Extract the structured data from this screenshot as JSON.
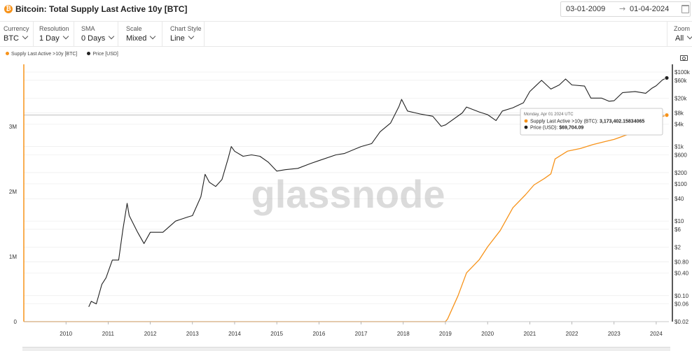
{
  "header": {
    "title": "Bitcoin: Total Supply Last Active 10y [BTC]",
    "date_start": "03-01-2009",
    "date_end": "01-04-2024",
    "arrow": "→"
  },
  "controls": [
    {
      "label": "Currency",
      "value": "BTC"
    },
    {
      "label": "Resolution",
      "value": "1 Day"
    },
    {
      "label": "SMA",
      "value": "0 Days"
    },
    {
      "label": "Scale",
      "value": "Mixed"
    },
    {
      "label": "Chart Style",
      "value": "Line"
    }
  ],
  "zoom": {
    "label": "Zoom",
    "value": "All"
  },
  "legend": [
    {
      "name": "Supply Last Active >10y [BTC]",
      "color": "#f7931a"
    },
    {
      "name": "Price [USD]",
      "color": "#222222"
    }
  ],
  "watermark": "glassnode",
  "tooltip": {
    "date": "Monday, Apr 01 2024 UTC",
    "lines": [
      {
        "label": "Supply Last Active >10y (BTC):",
        "value": "3,173,402.15834065",
        "color": "#f7931a"
      },
      {
        "label": "Price (USD):",
        "value": "$69,704.09",
        "color": "#222222"
      }
    ]
  },
  "chart_data": {
    "type": "line",
    "title": "Bitcoin: Total Supply Last Active 10y [BTC]",
    "x_ticks": [
      "2010",
      "2011",
      "2012",
      "2013",
      "2014",
      "2015",
      "2016",
      "2017",
      "2018",
      "2019",
      "2020",
      "2021",
      "2022",
      "2023",
      "2024"
    ],
    "left_axis": {
      "ticks": [
        {
          "label": "0",
          "value": 0
        },
        {
          "label": "1M",
          "value": 1000000
        },
        {
          "label": "2M",
          "value": 2000000
        },
        {
          "label": "3M",
          "value": 3000000
        }
      ],
      "ylim": [
        0,
        3900000
      ],
      "scale": "linear"
    },
    "right_axis": {
      "ticks": [
        {
          "label": "$0.02",
          "value": 0.02
        },
        {
          "label": "$0.06",
          "value": 0.06
        },
        {
          "label": "$0.10",
          "value": 0.1
        },
        {
          "label": "$0.40",
          "value": 0.4
        },
        {
          "label": "$0.80",
          "value": 0.8
        },
        {
          "label": "$2",
          "value": 2
        },
        {
          "label": "$6",
          "value": 6
        },
        {
          "label": "$10",
          "value": 10
        },
        {
          "label": "$40",
          "value": 40
        },
        {
          "label": "$100",
          "value": 100
        },
        {
          "label": "$200",
          "value": 200
        },
        {
          "label": "$600",
          "value": 600
        },
        {
          "label": "$1k",
          "value": 1000
        },
        {
          "label": "$4k",
          "value": 4000
        },
        {
          "label": "$8k",
          "value": 8000
        },
        {
          "label": "$20k",
          "value": 20000
        },
        {
          "label": "$60k",
          "value": 60000
        },
        {
          "label": "$100k",
          "value": 100000
        }
      ],
      "ylim": [
        0.02,
        130000
      ],
      "scale": "log"
    },
    "series": [
      {
        "name": "Supply Last Active >10y [BTC]",
        "axis": "left",
        "color": "#f7931a",
        "points": [
          [
            2009.0,
            0
          ],
          [
            2019.0,
            0
          ],
          [
            2019.05,
            40000
          ],
          [
            2019.3,
            400000
          ],
          [
            2019.5,
            750000
          ],
          [
            2019.8,
            950000
          ],
          [
            2020.0,
            1150000
          ],
          [
            2020.3,
            1400000
          ],
          [
            2020.6,
            1750000
          ],
          [
            2020.9,
            1950000
          ],
          [
            2021.1,
            2100000
          ],
          [
            2021.35,
            2200000
          ],
          [
            2021.5,
            2270000
          ],
          [
            2021.6,
            2500000
          ],
          [
            2021.9,
            2620000
          ],
          [
            2022.2,
            2660000
          ],
          [
            2022.5,
            2720000
          ],
          [
            2022.8,
            2770000
          ],
          [
            2023.0,
            2800000
          ],
          [
            2023.3,
            2870000
          ],
          [
            2023.5,
            3000000
          ],
          [
            2023.8,
            3060000
          ],
          [
            2024.0,
            3120000
          ],
          [
            2024.25,
            3173402
          ]
        ]
      },
      {
        "name": "Price [USD]",
        "axis": "right",
        "color": "#222222",
        "points": [
          [
            2010.54,
            0.05
          ],
          [
            2010.6,
            0.07
          ],
          [
            2010.72,
            0.06
          ],
          [
            2010.85,
            0.2
          ],
          [
            2010.95,
            0.3
          ],
          [
            2011.1,
            0.9
          ],
          [
            2011.25,
            0.9
          ],
          [
            2011.35,
            6
          ],
          [
            2011.45,
            30
          ],
          [
            2011.5,
            14
          ],
          [
            2011.7,
            5
          ],
          [
            2011.85,
            2.5
          ],
          [
            2012.0,
            5
          ],
          [
            2012.3,
            5
          ],
          [
            2012.6,
            10
          ],
          [
            2012.9,
            13
          ],
          [
            2013.0,
            14
          ],
          [
            2013.2,
            45
          ],
          [
            2013.3,
            180
          ],
          [
            2013.4,
            110
          ],
          [
            2013.55,
            85
          ],
          [
            2013.7,
            130
          ],
          [
            2013.85,
            500
          ],
          [
            2013.92,
            1000
          ],
          [
            2014.0,
            750
          ],
          [
            2014.2,
            550
          ],
          [
            2014.4,
            600
          ],
          [
            2014.6,
            550
          ],
          [
            2014.8,
            380
          ],
          [
            2015.0,
            220
          ],
          [
            2015.2,
            240
          ],
          [
            2015.5,
            260
          ],
          [
            2015.8,
            350
          ],
          [
            2016.0,
            420
          ],
          [
            2016.4,
            600
          ],
          [
            2016.6,
            650
          ],
          [
            2016.9,
            900
          ],
          [
            2017.0,
            1000
          ],
          [
            2017.25,
            1200
          ],
          [
            2017.45,
            2500
          ],
          [
            2017.7,
            4300
          ],
          [
            2017.9,
            12000
          ],
          [
            2017.96,
            18500
          ],
          [
            2018.1,
            9000
          ],
          [
            2018.4,
            7500
          ],
          [
            2018.7,
            6500
          ],
          [
            2018.9,
            3500
          ],
          [
            2019.0,
            3800
          ],
          [
            2019.4,
            8000
          ],
          [
            2019.5,
            11500
          ],
          [
            2019.8,
            8500
          ],
          [
            2020.0,
            7200
          ],
          [
            2020.2,
            5000
          ],
          [
            2020.35,
            9000
          ],
          [
            2020.6,
            11000
          ],
          [
            2020.85,
            15000
          ],
          [
            2021.0,
            30000
          ],
          [
            2021.28,
            60000
          ],
          [
            2021.5,
            35000
          ],
          [
            2021.7,
            45000
          ],
          [
            2021.85,
            65000
          ],
          [
            2022.0,
            45000
          ],
          [
            2022.3,
            42000
          ],
          [
            2022.45,
            20000
          ],
          [
            2022.7,
            20000
          ],
          [
            2022.88,
            16500
          ],
          [
            2023.0,
            17000
          ],
          [
            2023.2,
            28000
          ],
          [
            2023.5,
            30000
          ],
          [
            2023.75,
            27000
          ],
          [
            2023.9,
            37000
          ],
          [
            2024.0,
            43000
          ],
          [
            2024.15,
            62000
          ],
          [
            2024.25,
            69704
          ]
        ]
      }
    ]
  }
}
